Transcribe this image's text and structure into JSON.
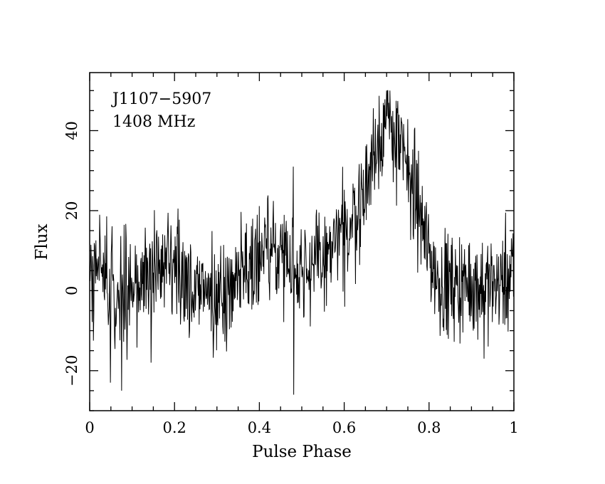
{
  "chart_data": {
    "type": "line",
    "title": "",
    "xlabel": "Pulse Phase",
    "ylabel": "Flux",
    "xlim": [
      0,
      1
    ],
    "ylim": [
      -30,
      54.5
    ],
    "x_ticks": [
      0,
      0.2,
      0.4,
      0.6,
      0.8,
      1
    ],
    "x_tick_labels": [
      "0",
      "0.2",
      "0.4",
      "0.6",
      "0.8",
      "1"
    ],
    "y_ticks": [
      -20,
      0,
      20,
      40
    ],
    "y_tick_labels": [
      "−20",
      "0",
      "20",
      "40"
    ],
    "annotations": [
      "J1107−5907",
      "1408 MHz"
    ],
    "grid": false,
    "legend": "none",
    "series": [
      {
        "n_bins": 1024,
        "profile_x": [
          0,
          0.05,
          0.1,
          0.15,
          0.2,
          0.25,
          0.3,
          0.35,
          0.4,
          0.45,
          0.5,
          0.55,
          0.6,
          0.62,
          0.64,
          0.66,
          0.68,
          0.7,
          0.72,
          0.74,
          0.76,
          0.78,
          0.8,
          0.82,
          0.85,
          0.9,
          0.95,
          1.0
        ],
        "profile_y": [
          6,
          2,
          -1,
          6,
          4,
          1,
          -3,
          5,
          9,
          10,
          6,
          7,
          14,
          18,
          22,
          30,
          38,
          43,
          39,
          33,
          27,
          18,
          9,
          3,
          1,
          2,
          1,
          4
        ],
        "noise_rms": 6.5,
        "spikes": [
          {
            "x": 0.049,
            "y": -23
          },
          {
            "x": 0.075,
            "y": -25
          },
          {
            "x": 0.145,
            "y": -18
          },
          {
            "x": 0.48,
            "y": 31
          },
          {
            "x": 0.481,
            "y": -26
          },
          {
            "x": 0.601,
            "y": -4
          },
          {
            "x": 0.93,
            "y": -17
          }
        ]
      }
    ]
  }
}
